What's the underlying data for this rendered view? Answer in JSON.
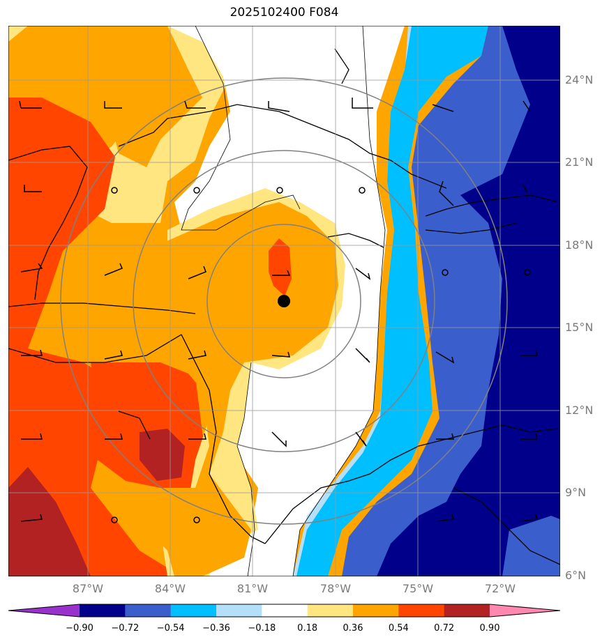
{
  "figure": {
    "title": "2025102400 F084",
    "lat_labels": [
      "24°N",
      "21°N",
      "18°N",
      "15°N",
      "12°N",
      "9°N",
      "6°N"
    ],
    "lon_labels": [
      "87°W",
      "84°W",
      "81°W",
      "78°W",
      "75°W",
      "72°W"
    ]
  },
  "map_extent": {
    "lon": [
      -89.3,
      -69.2
    ],
    "lat": [
      6,
      26
    ]
  },
  "storm_center": {
    "lon": -79.1,
    "lat": 16.0
  },
  "range_rings_deg": [
    3,
    5.5,
    8
  ],
  "colorbar": {
    "ticks": [
      "−0.90",
      "−0.72",
      "−0.54",
      "−0.36",
      "−0.18",
      "0.18",
      "0.36",
      "0.54",
      "0.72",
      "0.90"
    ],
    "colors": [
      "#9932cc",
      "#00008b",
      "#3a5fcd",
      "#00bfff",
      "#b3e0f8",
      "#ffffff",
      "#ffe680",
      "#ffa500",
      "#ff4500",
      "#b22222",
      "#ff88b0"
    ]
  },
  "palette": {
    "neg090": "#00008b",
    "neg072": "#3a5fcd",
    "neg054": "#00bfff",
    "neg036": "#b3e0f8",
    "neutral": "#ffffff",
    "pos018": "#ffe680",
    "pos036": "#ffa500",
    "pos054": "#ff4500",
    "pos072": "#b22222"
  }
}
